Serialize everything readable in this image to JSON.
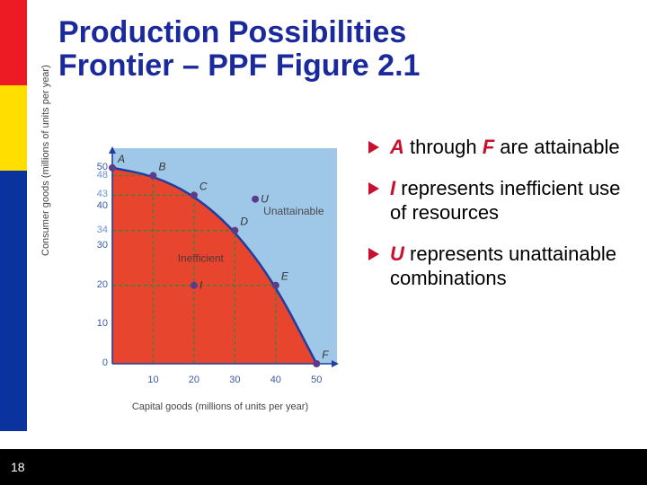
{
  "title": {
    "line1": "Production Possibilities",
    "line2": "Frontier – PPF Figure 2.1",
    "color": "#1a2a9c",
    "fontsize": 34
  },
  "page_number": "18",
  "bullets": {
    "arrow_color": "#c8102e",
    "items": [
      {
        "em1": "A",
        "mid": " through ",
        "em2": "F",
        "rest": " are attainable"
      },
      {
        "em1": "I",
        "mid": "",
        "em2": "",
        "rest": " represents inefficient use of resources"
      },
      {
        "em1": "U",
        "mid": "",
        "em2": "",
        "rest": " represents unattainable combinations"
      }
    ]
  },
  "chart": {
    "type": "ppf-curve",
    "xlabel": "Capital goods (millions of units per year)",
    "ylabel": "Consumer goods (millions of units per year)",
    "xlim": [
      0,
      55
    ],
    "ylim": [
      0,
      55
    ],
    "xticks": [
      10,
      20,
      30,
      40,
      50
    ],
    "yticks": [
      0,
      10,
      20,
      30,
      40,
      50
    ],
    "yticks_extra": [
      48,
      43,
      34
    ],
    "background_attainable": "#9fc7e8",
    "background_inefficient": "#e8452f",
    "curve_color": "#1e3fa0",
    "curve_width": 2.5,
    "grid_color": "#2a8a3a",
    "grid_dash": "4 3",
    "axis_color": "#1e3fa0",
    "point_color": "#5a3b8c",
    "point_radius": 4,
    "curve_points": [
      {
        "label": "A",
        "x": 0,
        "y": 50
      },
      {
        "label": "B",
        "x": 10,
        "y": 48
      },
      {
        "label": "C",
        "x": 20,
        "y": 43
      },
      {
        "label": "D",
        "x": 30,
        "y": 34
      },
      {
        "label": "E",
        "x": 40,
        "y": 20
      },
      {
        "label": "F",
        "x": 50,
        "y": 0
      }
    ],
    "extra_points": [
      {
        "label": "I",
        "x": 20,
        "y": 20,
        "note": "Inefficient"
      },
      {
        "label": "U",
        "x": 35,
        "y": 42,
        "note": "Unattainable"
      }
    ],
    "region_labels": {
      "inefficient": "Inefficient",
      "unattainable": "Unattainable"
    },
    "label_fontsize": 11,
    "tick_color": "#3b5ba5"
  }
}
